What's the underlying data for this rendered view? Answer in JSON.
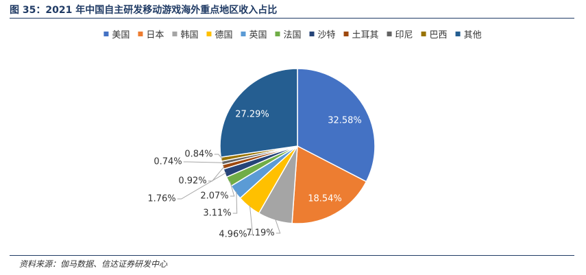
{
  "figure": {
    "title": "图 35：2021 年中国自主研发移动游戏海外重点地区收入占比",
    "source": "资料来源：伽马数据、信达证券研发中心"
  },
  "chart_data": {
    "type": "pie",
    "title": "",
    "legend_position": "top",
    "start_angle_deg": 0,
    "direction": "clockwise",
    "categories": [
      "美国",
      "日本",
      "韩国",
      "德国",
      "英国",
      "法国",
      "沙特",
      "土耳其",
      "印尼",
      "巴西",
      "其他"
    ],
    "values": [
      32.58,
      18.54,
      7.19,
      4.96,
      3.11,
      2.07,
      1.76,
      0.92,
      0.74,
      0.84,
      27.29
    ],
    "labels": [
      "32.58%",
      "18.54%",
      "7.19%",
      "4.96%",
      "3.11%",
      "2.07%",
      "1.76%",
      "0.92%",
      "0.74%",
      "0.84%",
      "27.29%"
    ],
    "colors": [
      "#4472c4",
      "#ed7d31",
      "#a5a5a5",
      "#ffc000",
      "#5b9bd5",
      "#70ad47",
      "#264478",
      "#9e480e",
      "#636363",
      "#997300",
      "#255e91"
    ]
  }
}
